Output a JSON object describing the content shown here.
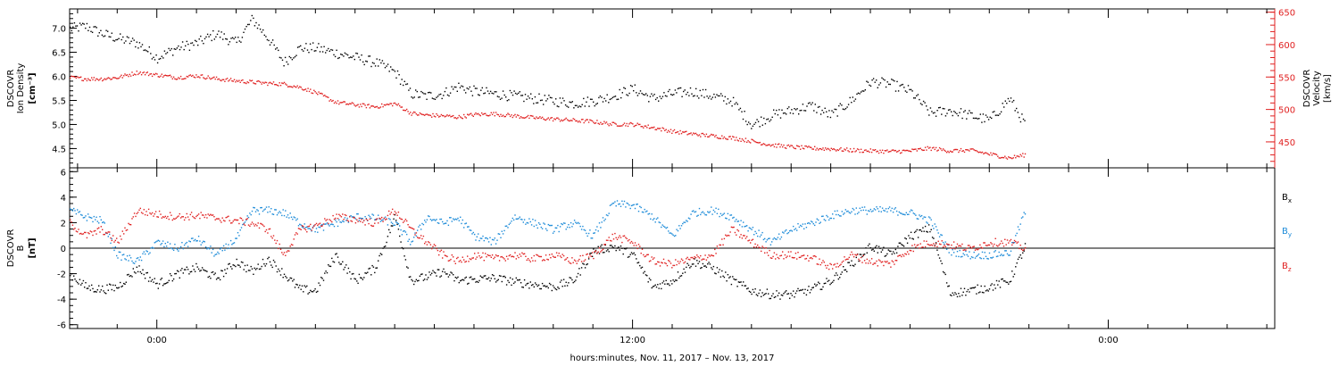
{
  "colors": {
    "black": "#000000",
    "blue": "#1b8ad8",
    "red": "#e02020"
  },
  "time_axis": {
    "tick_labels": [
      "0:00",
      "12:00",
      "0:00"
    ],
    "xlabel": "hours:minutes, Nov. 11, 2017 – Nov. 13, 2017",
    "start_hours": -2.2,
    "end_hours": 28.2,
    "data_end_hours": 21.9
  },
  "chart_data": [
    {
      "type": "scatter",
      "panel": "top",
      "ylabel_lines": [
        "DSCOVR",
        "Ion Density",
        "[cm⁻³]"
      ],
      "ylim": [
        4.1,
        7.4
      ],
      "yticks": [
        4.5,
        5.0,
        5.5,
        6.0,
        6.5,
        7.0
      ],
      "ytick_labels": [
        "4.5",
        "5.0",
        "5.5",
        "6.0",
        "6.5",
        "7.0"
      ],
      "y2label_lines": [
        "DSCOVR",
        "Velocity",
        "[km/s]"
      ],
      "y2lim": [
        410,
        655
      ],
      "y2ticks": [
        450,
        500,
        550,
        600,
        650
      ],
      "y2tick_labels": [
        "450",
        "500",
        "550",
        "600",
        "650"
      ],
      "series": [
        {
          "axis": "left",
          "color_key": "black",
          "x_hours": [
            -2.2,
            -1.8,
            -1.4,
            -1.0,
            -0.5,
            0.0,
            0.5,
            1.0,
            1.5,
            2.0,
            2.4,
            2.8,
            3.2,
            3.6,
            4.0,
            4.5,
            5.0,
            5.5,
            6.0,
            6.4,
            6.8,
            7.2,
            7.6,
            8.0,
            8.5,
            9.0,
            9.5,
            10.0,
            10.5,
            11.0,
            11.5,
            12.0,
            12.5,
            13.0,
            13.5,
            14.0,
            14.5,
            15.0,
            15.5,
            16.0,
            16.5,
            17.0,
            17.5,
            18.0,
            18.5,
            19.0,
            19.5,
            20.0,
            20.5,
            21.0,
            21.5,
            21.9
          ],
          "values": [
            7.0,
            7.05,
            6.9,
            6.8,
            6.7,
            6.4,
            6.6,
            6.7,
            6.9,
            6.7,
            7.2,
            6.8,
            6.3,
            6.6,
            6.6,
            6.5,
            6.4,
            6.3,
            6.1,
            5.65,
            5.6,
            5.65,
            5.8,
            5.7,
            5.65,
            5.6,
            5.55,
            5.5,
            5.45,
            5.5,
            5.6,
            5.75,
            5.55,
            5.65,
            5.7,
            5.6,
            5.5,
            5.0,
            5.2,
            5.3,
            5.4,
            5.2,
            5.5,
            5.9,
            5.85,
            5.7,
            5.25,
            5.3,
            5.2,
            5.1,
            5.55,
            5.0
          ]
        },
        {
          "axis": "right",
          "color_key": "red",
          "x_hours": [
            -2.2,
            -1.8,
            -1.4,
            -1.0,
            -0.5,
            0.0,
            0.5,
            1.0,
            1.5,
            2.0,
            2.4,
            2.8,
            3.2,
            3.6,
            4.0,
            4.5,
            5.0,
            5.5,
            6.0,
            6.4,
            6.8,
            7.2,
            7.6,
            8.0,
            8.5,
            9.0,
            9.5,
            10.0,
            10.5,
            11.0,
            11.5,
            12.0,
            12.5,
            13.0,
            13.5,
            14.0,
            14.5,
            15.0,
            15.5,
            16.0,
            16.5,
            17.0,
            17.5,
            18.0,
            18.5,
            19.0,
            19.5,
            20.0,
            20.5,
            21.0,
            21.5,
            21.9
          ],
          "values": [
            550,
            548,
            548,
            550,
            558,
            554,
            550,
            553,
            548,
            545,
            543,
            541,
            540,
            535,
            527,
            512,
            508,
            505,
            510,
            495,
            492,
            491,
            489,
            493,
            494,
            491,
            488,
            486,
            484,
            482,
            478,
            478,
            473,
            467,
            463,
            460,
            457,
            452,
            446,
            443,
            441,
            440,
            438,
            437,
            436,
            437,
            441,
            437,
            438,
            432,
            426,
            431
          ]
        }
      ]
    },
    {
      "type": "scatter",
      "panel": "bottom",
      "ylabel_lines": [
        "DSCOVR",
        "B",
        "[nT]"
      ],
      "ylim": [
        -6.3,
        6.3
      ],
      "yticks": [
        -6,
        -4,
        -2,
        0,
        2,
        4,
        6
      ],
      "ytick_labels": [
        "-6",
        "-4",
        "-2",
        "0",
        "2",
        "4",
        "6"
      ],
      "legend": [
        {
          "label": "B",
          "sub": "x",
          "color_key": "black"
        },
        {
          "label": "B",
          "sub": "y",
          "color_key": "blue"
        },
        {
          "label": "B",
          "sub": "z",
          "color_key": "red"
        }
      ],
      "series": [
        {
          "color_key": "black",
          "x_hours": [
            -2.2,
            -1.8,
            -1.4,
            -1.0,
            -0.5,
            0.0,
            0.5,
            1.0,
            1.5,
            2.0,
            2.4,
            2.8,
            3.2,
            3.6,
            4.0,
            4.5,
            5.0,
            5.5,
            6.0,
            6.4,
            6.8,
            7.2,
            7.6,
            8.0,
            8.5,
            9.0,
            9.5,
            10.0,
            10.5,
            11.0,
            11.5,
            12.0,
            12.5,
            13.0,
            13.5,
            14.0,
            14.5,
            15.0,
            15.5,
            16.0,
            16.5,
            17.0,
            17.5,
            18.0,
            18.5,
            19.0,
            19.5,
            20.0,
            20.5,
            21.0,
            21.5,
            21.9
          ],
          "values": [
            -2.0,
            -3.0,
            -3.2,
            -3.0,
            -1.5,
            -2.8,
            -2.0,
            -1.5,
            -2.3,
            -1.0,
            -1.8,
            -0.8,
            -2.0,
            -3.2,
            -3.3,
            -0.5,
            -2.5,
            -1.5,
            2.5,
            -2.5,
            -2.2,
            -1.8,
            -2.5,
            -2.4,
            -2.3,
            -2.6,
            -2.8,
            -3.0,
            -2.5,
            -0.2,
            0.2,
            -0.5,
            -3.0,
            -2.5,
            -1.0,
            -1.5,
            -2.5,
            -3.3,
            -3.6,
            -3.6,
            -3.2,
            -2.5,
            -1.2,
            0.2,
            -0.5,
            1.0,
            1.6,
            -3.5,
            -3.3,
            -3.0,
            -2.5,
            0.2
          ]
        },
        {
          "color_key": "blue",
          "x_hours": [
            -2.2,
            -1.8,
            -1.4,
            -1.0,
            -0.5,
            0.0,
            0.5,
            1.0,
            1.5,
            2.0,
            2.4,
            2.8,
            3.2,
            3.6,
            4.0,
            4.5,
            5.0,
            5.5,
            6.0,
            6.4,
            6.8,
            7.2,
            7.6,
            8.0,
            8.5,
            9.0,
            9.5,
            10.0,
            10.5,
            11.0,
            11.5,
            12.0,
            12.5,
            13.0,
            13.5,
            14.0,
            14.5,
            15.0,
            15.5,
            16.0,
            16.5,
            17.0,
            17.5,
            18.0,
            18.5,
            19.0,
            19.5,
            20.0,
            20.5,
            21.0,
            21.5,
            21.9
          ],
          "values": [
            3.0,
            2.5,
            2.2,
            -0.5,
            -1.0,
            0.5,
            0.0,
            0.8,
            -0.5,
            0.8,
            3.0,
            3.0,
            2.8,
            2.0,
            1.5,
            2.0,
            2.5,
            2.4,
            2.0,
            0.5,
            2.5,
            2.0,
            2.4,
            1.0,
            0.5,
            2.5,
            2.0,
            1.5,
            2.0,
            1.0,
            3.5,
            3.4,
            2.5,
            1.0,
            2.8,
            3.0,
            2.5,
            1.5,
            0.5,
            1.5,
            2.0,
            2.6,
            3.0,
            3.0,
            3.0,
            2.8,
            2.2,
            -0.2,
            -0.5,
            -0.5,
            -0.3,
            3.0
          ]
        },
        {
          "color_key": "red",
          "x_hours": [
            -2.2,
            -1.8,
            -1.4,
            -1.0,
            -0.5,
            0.0,
            0.5,
            1.0,
            1.5,
            2.0,
            2.4,
            2.8,
            3.2,
            3.6,
            4.0,
            4.5,
            5.0,
            5.5,
            6.0,
            6.4,
            6.8,
            7.2,
            7.6,
            8.0,
            8.5,
            9.0,
            9.5,
            10.0,
            10.5,
            11.0,
            11.5,
            12.0,
            12.5,
            13.0,
            13.5,
            14.0,
            14.5,
            15.0,
            15.5,
            16.0,
            16.5,
            17.0,
            17.5,
            18.0,
            18.5,
            19.0,
            19.5,
            20.0,
            20.5,
            21.0,
            21.5,
            21.9
          ],
          "values": [
            2.0,
            1.0,
            1.5,
            0.5,
            3.0,
            2.7,
            2.5,
            2.6,
            2.4,
            2.2,
            2.0,
            1.5,
            -0.5,
            1.5,
            1.8,
            2.5,
            2.3,
            2.0,
            3.0,
            1.5,
            0.5,
            -0.5,
            -1.0,
            -0.5,
            -0.8,
            -0.5,
            -0.8,
            -0.5,
            -1.0,
            -0.5,
            1.0,
            0.5,
            -1.0,
            -1.2,
            -0.8,
            -0.5,
            1.5,
            0.5,
            -0.5,
            -0.5,
            -0.7,
            -1.5,
            -0.5,
            -1.0,
            -1.2,
            0.0,
            0.5,
            0.3,
            0.0,
            0.5,
            0.5,
            0.0
          ]
        }
      ]
    }
  ]
}
